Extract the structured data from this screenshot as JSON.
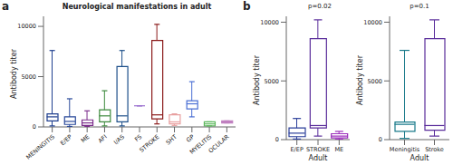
{
  "chart_data": [
    {
      "type": "box",
      "panel_label": "a",
      "title": "Neurological manifestations in adult",
      "y_label": "Antibody titer",
      "categories": [
        "MENINGITIS",
        "E/EP",
        "ME",
        "AFI",
        "I/AS",
        "FS",
        "STROKE",
        "SHT",
        "GP",
        "MYELITIS",
        "OCULAR"
      ],
      "min": [
        100,
        50,
        50,
        100,
        100,
        2100,
        300,
        150,
        1000,
        100,
        400
      ],
      "q1": [
        600,
        250,
        150,
        500,
        500,
        2100,
        800,
        300,
        1800,
        100,
        400
      ],
      "median": [
        1000,
        550,
        400,
        1100,
        1100,
        2100,
        1200,
        500,
        2300,
        300,
        500
      ],
      "q3": [
        1300,
        1000,
        700,
        1700,
        6000,
        2100,
        8600,
        1200,
        2600,
        500,
        600
      ],
      "max": [
        7600,
        2800,
        1600,
        3600,
        7600,
        2100,
        10200,
        1300,
        4500,
        500,
        600
      ],
      "colors": [
        "#1f3f8f",
        "#2b4a9a",
        "#7b2d8b",
        "#3d8a3d",
        "#1d4f8a",
        "#9a6fcf",
        "#8b1a1a",
        "#e8a0a0",
        "#4a6fd4",
        "#5cb85c",
        "#c080c0"
      ],
      "ylim": [
        0,
        11000
      ],
      "yticks": [
        0,
        5000,
        10000
      ]
    },
    {
      "type": "box",
      "panel_label": "b",
      "annotation": "p=0.02",
      "x_label": "Adult",
      "y_label": "Antibody titer",
      "categories": [
        "E/EP",
        "STROKE",
        "ME"
      ],
      "min": [
        50,
        300,
        50
      ],
      "q1": [
        250,
        1000,
        150
      ],
      "median": [
        550,
        1200,
        300
      ],
      "q3": [
        1000,
        8600,
        500
      ],
      "max": [
        1800,
        10200,
        700
      ],
      "colors": [
        "#2b3f9a",
        "#5a2d9b",
        "#9b2dbb"
      ],
      "ylim": [
        0,
        10500
      ],
      "yticks": [
        0,
        5000,
        10000
      ]
    },
    {
      "type": "box",
      "annotation": "p=0.1",
      "x_label": "Adult",
      "y_label": "Antibody titer",
      "categories": [
        "Meningitis",
        "Stroke"
      ],
      "min": [
        100,
        300
      ],
      "q1": [
        700,
        800
      ],
      "median": [
        1300,
        1200
      ],
      "q3": [
        1500,
        8600
      ],
      "max": [
        7600,
        10200
      ],
      "colors": [
        "#1a7a8a",
        "#5a2d9b"
      ],
      "ylim": [
        0,
        10500
      ],
      "yticks": [
        0,
        5000,
        10000
      ]
    }
  ]
}
